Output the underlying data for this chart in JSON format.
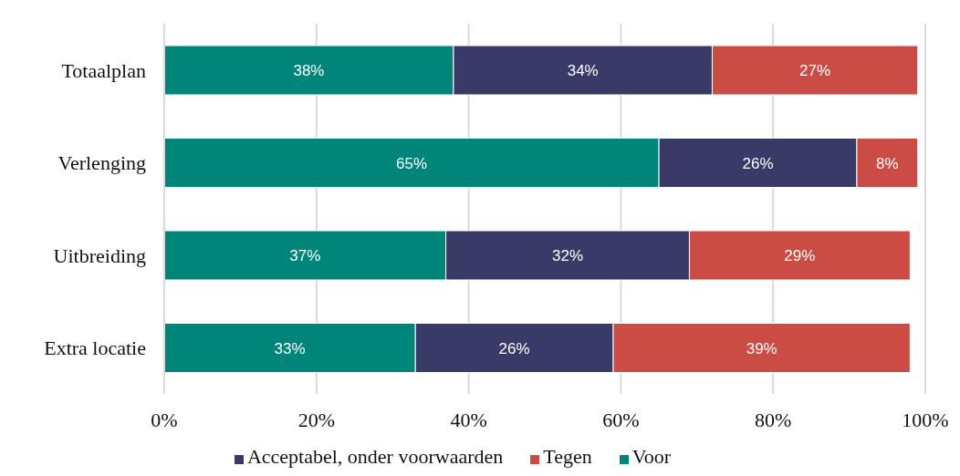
{
  "chart_data": {
    "type": "bar",
    "orientation": "horizontal",
    "stacked": true,
    "categories": [
      "Totaalplan",
      "Verlenging",
      "Uitbreiding",
      "Extra locatie"
    ],
    "series": [
      {
        "name": "Voor",
        "color": "#00857a",
        "values": [
          38,
          65,
          37,
          33
        ],
        "value_labels": [
          "38%",
          "65%",
          "37%",
          "33%"
        ]
      },
      {
        "name": "Acceptabel, onder voorwaarden",
        "color": "#3a3a68",
        "values": [
          34,
          26,
          32,
          26
        ],
        "value_labels": [
          "34%",
          "26%",
          "32%",
          "26%"
        ]
      },
      {
        "name": "Tegen",
        "color": "#cb4c44",
        "values": [
          27,
          8,
          29,
          39
        ],
        "value_labels": [
          "27%",
          "8%",
          "29%",
          "39%"
        ]
      }
    ],
    "xlim": [
      0,
      100
    ],
    "xticks": [
      {
        "value": 0,
        "label": "0%"
      },
      {
        "value": 20,
        "label": "20%"
      },
      {
        "value": 40,
        "label": "40%"
      },
      {
        "value": 60,
        "label": "60%"
      },
      {
        "value": 80,
        "label": "80%"
      },
      {
        "value": 100,
        "label": "100%"
      }
    ],
    "grid": "x",
    "legend": "bottom"
  }
}
